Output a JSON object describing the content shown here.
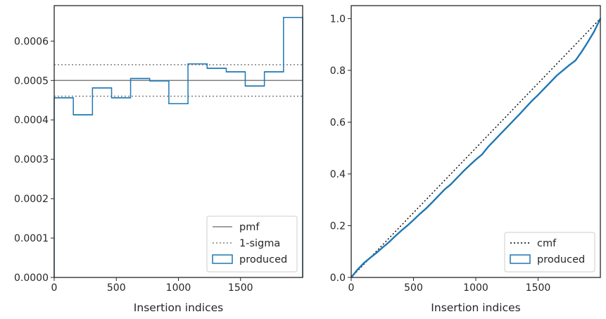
{
  "chart_data": [
    {
      "type": "histogram-step",
      "xlabel": "Insertion indices",
      "ylabel": "",
      "xlim": [
        0,
        2000
      ],
      "ylim": [
        0,
        0.00069
      ],
      "xticks": [
        0,
        500,
        1000,
        1500
      ],
      "xtick_labels": [
        "0",
        "500",
        "1000",
        "1500"
      ],
      "yticks": [
        0,
        0.0001,
        0.0002,
        0.0003,
        0.0004,
        0.0005,
        0.0006
      ],
      "ytick_labels": [
        "0.0000",
        "0.0001",
        "0.0002",
        "0.0003",
        "0.0004",
        "0.0005",
        "0.0006"
      ],
      "legend_position": "lower-right",
      "legend": [
        "pmf",
        "1-sigma",
        "produced"
      ],
      "pmf": 0.0005,
      "sigma_band": [
        0.00046,
        0.00054
      ],
      "bins": {
        "edges": [
          0,
          154,
          308,
          462,
          615,
          769,
          923,
          1077,
          1231,
          1385,
          1538,
          1692,
          1846,
          2000
        ],
        "values": [
          0.000456,
          0.000413,
          0.000481,
          0.000456,
          0.000505,
          0.000499,
          0.000441,
          0.000542,
          0.000531,
          0.000522,
          0.000486,
          0.000522,
          0.00066
        ]
      },
      "colors": {
        "produced": "#1f77b4",
        "pmf": "#808080",
        "sigma": "#808080"
      }
    },
    {
      "type": "line",
      "xlabel": "Insertion indices",
      "ylabel": "",
      "xlim": [
        0,
        2000
      ],
      "ylim": [
        0,
        1.05
      ],
      "xticks": [
        0,
        500,
        1000,
        1500
      ],
      "xtick_labels": [
        "0",
        "500",
        "1000",
        "1500"
      ],
      "yticks": [
        0,
        0.2,
        0.4,
        0.6,
        0.8,
        1.0
      ],
      "ytick_labels": [
        "0.0",
        "0.2",
        "0.4",
        "0.6",
        "0.8",
        "1.0"
      ],
      "legend_position": "lower-right",
      "legend": [
        "cmf",
        "produced"
      ],
      "cmf": {
        "x": [
          0,
          2000
        ],
        "y": [
          0,
          1.0
        ]
      },
      "produced": {
        "x": [
          0,
          50,
          100,
          150,
          200,
          250,
          300,
          350,
          400,
          450,
          500,
          550,
          600,
          650,
          700,
          750,
          800,
          850,
          900,
          950,
          1000,
          1050,
          1100,
          1150,
          1200,
          1250,
          1300,
          1350,
          1400,
          1450,
          1500,
          1550,
          1600,
          1650,
          1700,
          1750,
          1800,
          1850,
          1900,
          1950,
          2000
        ],
        "y": [
          0,
          0.03,
          0.055,
          0.075,
          0.094,
          0.115,
          0.135,
          0.158,
          0.18,
          0.2,
          0.222,
          0.245,
          0.266,
          0.29,
          0.315,
          0.34,
          0.36,
          0.385,
          0.41,
          0.433,
          0.455,
          0.475,
          0.505,
          0.53,
          0.555,
          0.58,
          0.605,
          0.63,
          0.656,
          0.682,
          0.705,
          0.73,
          0.755,
          0.78,
          0.8,
          0.82,
          0.838,
          0.872,
          0.91,
          0.95,
          1.0
        ]
      },
      "colors": {
        "produced": "#1f77b4",
        "cmf": "#000000"
      }
    }
  ]
}
